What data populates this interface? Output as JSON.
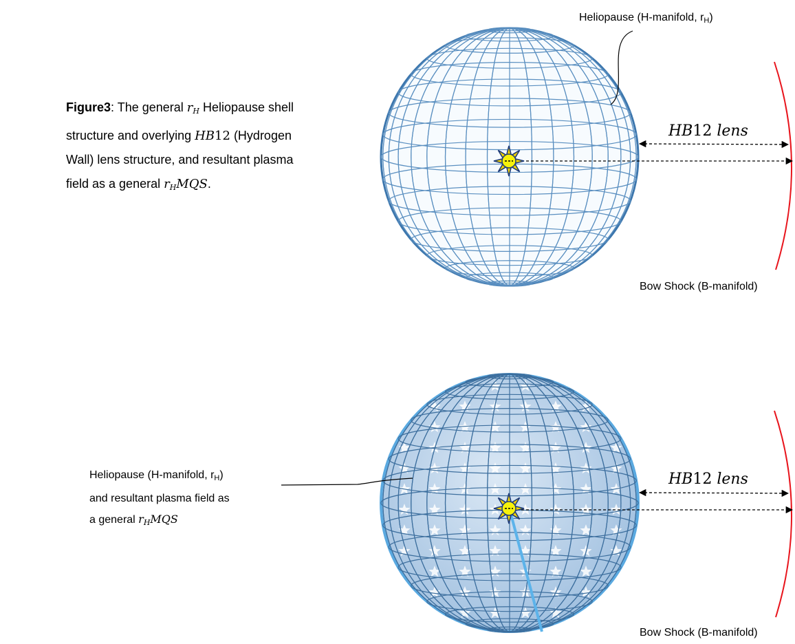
{
  "caption": {
    "lead": "Figure3",
    "t1": ":  The general ",
    "rH": "r",
    "rH_sub": "H",
    "t2": " Heliopause shell structure and overlying ",
    "hb": "HB",
    "hb_num": "12",
    "t3": " (Hydrogen Wall) lens structure, and resultant plasma field as a general ",
    "rmqs_r": "r",
    "rmqs_sub": "H",
    "rmqs_tail": "MQS",
    "end": "."
  },
  "top": {
    "heliopause_label": "Heliopause (H-manifold, r",
    "heliopause_sub": "H",
    "heliopause_close": ")",
    "lens_hb": "HB",
    "lens_num": "12",
    "lens_word": " lens",
    "bow_label": "Bow Shock (B-manifold)"
  },
  "bottom": {
    "line1": "Heliopause (H-manifold, r",
    "line1_sub": "H",
    "line1_close": ")",
    "line2": "and resultant plasma field as",
    "line3": "a general ",
    "line3_r": "r",
    "line3_sub": "H",
    "line3_tail": "MQS",
    "lens_hb": "HB",
    "lens_num": "12",
    "lens_word": " lens",
    "bow_label": "Bow Shock (B-manifold)"
  },
  "colors": {
    "sphere_grid": "#4f86b8",
    "sphere_grid_light": "#9ec6e3",
    "bow_shock": "#e8141c",
    "sun_fill": "#f7f20a",
    "sun_ray": "#1f3c7a",
    "shaded_sphere": "#a9c7e4"
  },
  "icons": [
    "sun-icon",
    "arrow-left-icon",
    "arrow-right-icon"
  ]
}
